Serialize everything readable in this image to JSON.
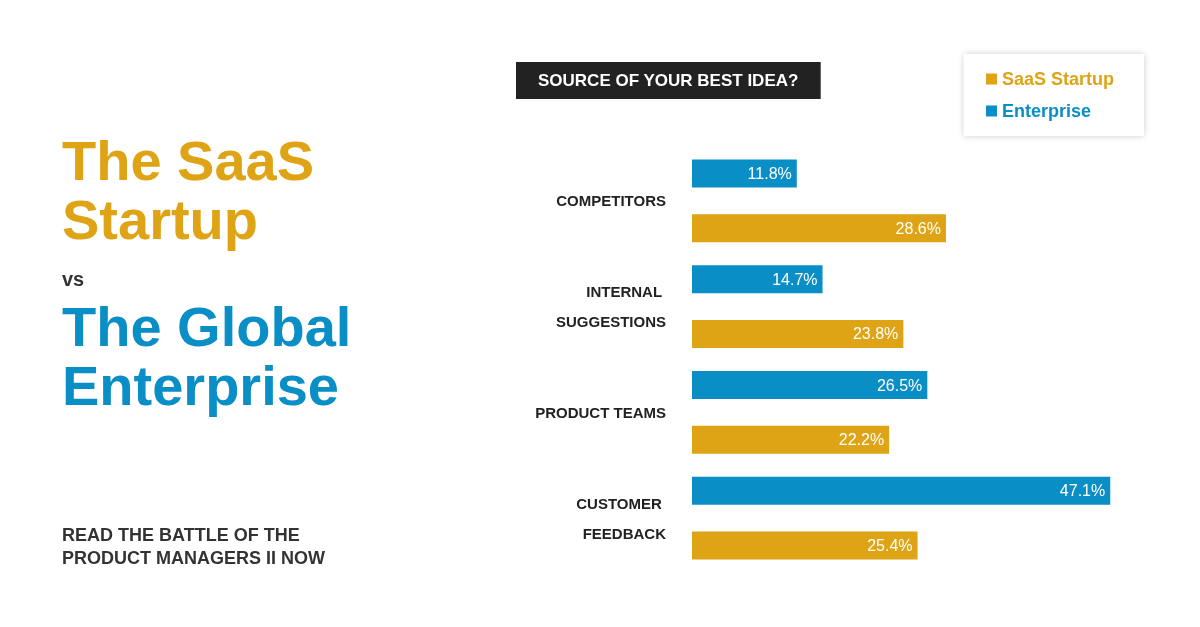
{
  "chart_data": {
    "type": "bar",
    "orientation": "horizontal",
    "title": "SOURCE OF YOUR BEST IDEA?",
    "categories": [
      "COMPETITORS",
      "INTERNAL SUGGESTIONS",
      "PRODUCT TEAMS",
      "CUSTOMER FEEDBACK"
    ],
    "series": [
      {
        "name": "SaaS Startup",
        "color": "#dea415",
        "values": [
          28.6,
          23.8,
          22.2,
          25.4
        ],
        "value_labels": [
          "28.6%",
          "23.8%",
          "22.2%",
          "25.4%"
        ]
      },
      {
        "name": "Enterprise",
        "color": "#0a8ec6",
        "values": [
          11.8,
          14.7,
          26.5,
          47.1
        ],
        "value_labels": [
          "11.8%",
          "14.7%",
          "26.5%",
          "47.1%"
        ]
      }
    ],
    "legend": "top right",
    "grid": false,
    "annotations": [
      "The SaaS Startup",
      "vs",
      "The Global Enterprise",
      "READ THE BATTLE OF THE PRODUCT MANAGERS II NOW"
    ]
  }
}
